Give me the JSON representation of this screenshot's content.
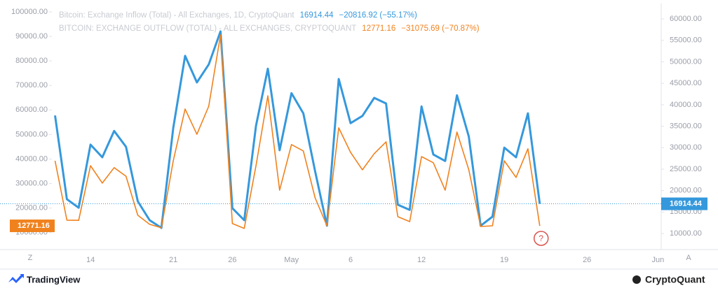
{
  "chart_data": {
    "type": "line",
    "categories": [
      null,
      null,
      null,
      "14",
      null,
      null,
      null,
      null,
      null,
      null,
      "21",
      null,
      null,
      null,
      null,
      "26",
      null,
      null,
      null,
      null,
      "May",
      null,
      null,
      null,
      null,
      "6",
      null,
      null,
      null,
      null,
      null,
      "12",
      null,
      null,
      null,
      null,
      null,
      null,
      "19",
      null,
      null,
      null,
      null,
      null,
      null,
      "26",
      null,
      null,
      null,
      null,
      null,
      "Jun"
    ],
    "series": [
      {
        "name": "Bitcoin: Exchange Inflow (Total) - All Exchanges, 1D, CryptoQuant",
        "color": "#3598dc",
        "axis": "y2",
        "change": "−20816.92 (−55.17%)",
        "values": [
          37500,
          18000,
          16000,
          30700,
          27750,
          33900,
          30200,
          17500,
          13100,
          11300,
          34600,
          51400,
          45200,
          49400,
          57100,
          15900,
          13100,
          35100,
          48400,
          29400,
          42700,
          38000,
          24500,
          11800,
          46000,
          35700,
          37400,
          41600,
          40300,
          16700,
          15500,
          39600,
          28400,
          26900,
          42200,
          32600,
          11800,
          13900,
          30000,
          27750,
          38000,
          16914.44,
          null,
          null,
          null,
          null,
          null,
          null,
          null,
          null,
          null,
          null
        ]
      },
      {
        "name": "BITCOIN: EXCHANGE OUTFLOW (TOTAL) - ALL EXCHANGES, CRYPTOQUANT",
        "color": "#f0821e",
        "axis": "y",
        "change": "−31075.69 (−70.87%)",
        "values": [
          39300,
          15100,
          15000,
          37300,
          30200,
          36500,
          33000,
          17100,
          13400,
          12000,
          39300,
          60400,
          50100,
          61500,
          90600,
          13700,
          11700,
          37300,
          65800,
          27300,
          45900,
          43300,
          24200,
          12800,
          52700,
          42700,
          35600,
          42200,
          47000,
          16500,
          14500,
          41000,
          38500,
          27300,
          51000,
          35600,
          12500,
          12800,
          39300,
          32500,
          44200,
          12771.16,
          null,
          null,
          null,
          null,
          null,
          null,
          null,
          null,
          null,
          null
        ]
      }
    ],
    "ylim": [
      3100,
      103400
    ],
    "yticks": [
      {
        "value": 10000,
        "label": "10000.00"
      },
      {
        "value": 20000,
        "label": "20000.00"
      },
      {
        "value": 30000,
        "label": "30000.00"
      },
      {
        "value": 40000,
        "label": "40000.00"
      },
      {
        "value": 50000,
        "label": "50000.00"
      },
      {
        "value": 60000,
        "label": "60000.00"
      },
      {
        "value": 70000,
        "label": "70000.00"
      },
      {
        "value": 80000,
        "label": "80000.00"
      },
      {
        "value": 90000,
        "label": "90000.00"
      },
      {
        "value": 100000,
        "label": "100000.00"
      }
    ],
    "y2lim": [
      6250,
      63600
    ],
    "y2ticks": [
      {
        "value": 10000,
        "label": "10000.00"
      },
      {
        "value": 15000,
        "label": "15000.00"
      },
      {
        "value": 20000,
        "label": "20000.00"
      },
      {
        "value": 25000,
        "label": "25000.00"
      },
      {
        "value": 30000,
        "label": "30000.00"
      },
      {
        "value": 35000,
        "label": "35000.00"
      },
      {
        "value": 40000,
        "label": "40000.00"
      },
      {
        "value": 45000,
        "label": "45000.00"
      },
      {
        "value": 50000,
        "label": "50000.00"
      },
      {
        "value": 55000,
        "label": "55000.00"
      },
      {
        "value": 60000,
        "label": "60000.00"
      }
    ],
    "grid": false,
    "annotation": "?",
    "buttons": [
      "Z",
      "A"
    ],
    "footer": {
      "left": "TradingView",
      "right": "CryptoQuant"
    }
  }
}
